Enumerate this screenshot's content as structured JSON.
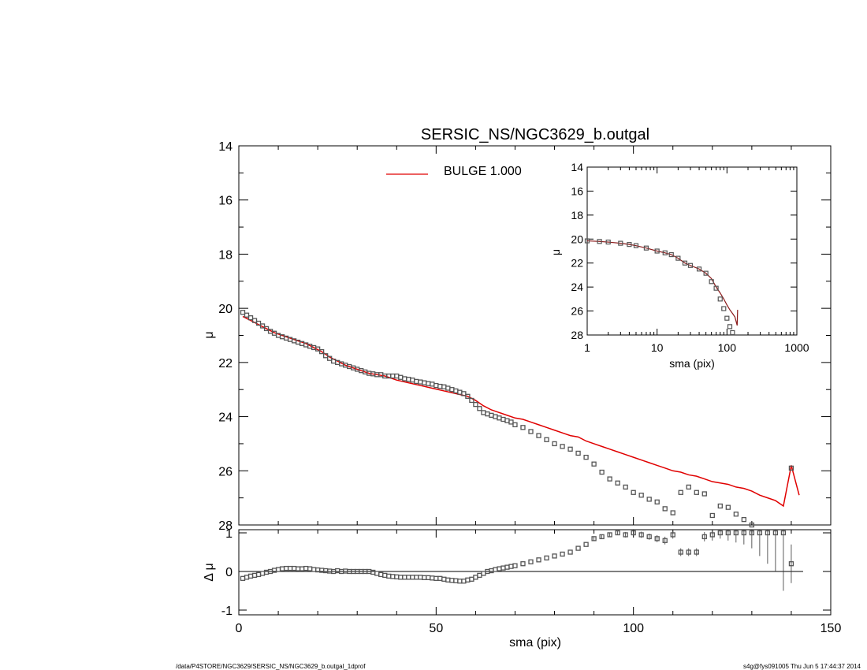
{
  "title": "SERSIC_NS/NGC3629_b.outgal",
  "footer_left": "/data/P4STORE/NGC3629/SERSIC_NS/NGC3629_b.outgal_1dprof",
  "footer_right": "s4g@fys091005  Thu Jun  5 17:44:37 2014",
  "colors": {
    "model": "#e00000",
    "data": "#555555",
    "axis": "#000000"
  },
  "chart_data": [
    {
      "type": "scatter",
      "panel": "main",
      "xlabel": "sma (pix)",
      "ylabel": "μ",
      "xlim": [
        0,
        150
      ],
      "ylim": [
        28,
        14
      ],
      "xticks": [
        0,
        50,
        100,
        150
      ],
      "yticks": [
        14,
        16,
        18,
        20,
        22,
        24,
        26,
        28
      ],
      "legend": {
        "label": "BULGE  1.000",
        "color": "#e00000",
        "position": "top-center"
      },
      "series": [
        {
          "name": "BULGE  1.000",
          "kind": "line",
          "x": [
            1,
            3,
            5,
            7,
            9,
            11,
            13,
            15,
            17,
            19,
            21,
            23,
            25,
            27,
            29,
            31,
            33,
            35,
            37,
            40,
            43,
            46,
            49,
            52,
            55,
            58,
            60,
            62,
            64,
            66,
            68,
            70,
            72,
            74,
            76,
            78,
            80,
            82,
            84,
            86,
            88,
            90,
            92,
            94,
            96,
            98,
            100,
            102,
            104,
            106,
            108,
            110,
            112,
            114,
            116,
            118,
            120,
            122,
            124,
            126,
            128,
            130,
            132,
            134,
            136,
            138,
            140,
            142
          ],
          "y": [
            20.3,
            20.45,
            20.6,
            20.75,
            20.9,
            21.0,
            21.1,
            21.2,
            21.3,
            21.45,
            21.6,
            21.8,
            21.95,
            22.1,
            22.2,
            22.3,
            22.4,
            22.45,
            22.5,
            22.65,
            22.75,
            22.85,
            22.95,
            23.05,
            23.15,
            23.25,
            23.4,
            23.6,
            23.75,
            23.85,
            23.95,
            24.05,
            24.1,
            24.2,
            24.3,
            24.4,
            24.5,
            24.6,
            24.7,
            24.75,
            24.9,
            25.0,
            25.1,
            25.2,
            25.3,
            25.4,
            25.5,
            25.6,
            25.7,
            25.8,
            25.9,
            26.0,
            26.05,
            26.15,
            26.2,
            26.3,
            26.4,
            26.45,
            26.5,
            26.6,
            26.65,
            26.75,
            26.9,
            27.0,
            27.1,
            27.3,
            25.8,
            26.9
          ]
        },
        {
          "name": "",
          "kind": "points",
          "x": [
            1,
            2,
            3,
            4,
            5,
            6,
            7,
            8,
            9,
            10,
            11,
            12,
            13,
            14,
            15,
            16,
            17,
            18,
            19,
            20,
            21,
            22,
            23,
            24,
            25,
            26,
            27,
            28,
            29,
            30,
            31,
            32,
            33,
            34,
            35,
            36,
            37,
            38,
            39,
            40,
            41,
            42,
            43,
            44,
            45,
            46,
            47,
            48,
            49,
            50,
            51,
            52,
            53,
            54,
            55,
            56,
            57,
            58,
            59,
            60,
            61,
            62,
            63,
            64,
            65,
            66,
            67,
            68,
            69,
            70,
            72,
            74,
            76,
            78,
            80,
            82,
            84,
            86,
            88,
            90,
            92,
            94,
            96,
            98,
            100,
            102,
            104,
            106,
            108,
            110,
            112,
            114,
            116,
            118,
            120,
            122,
            124,
            126,
            128,
            130,
            132,
            134,
            136,
            138,
            140
          ],
          "y": [
            20.15,
            20.25,
            20.35,
            20.45,
            20.55,
            20.65,
            20.75,
            20.85,
            20.92,
            21.0,
            21.05,
            21.1,
            21.15,
            21.2,
            21.25,
            21.3,
            21.35,
            21.4,
            21.45,
            21.5,
            21.6,
            21.75,
            21.85,
            21.95,
            22.0,
            22.05,
            22.1,
            22.15,
            22.2,
            22.25,
            22.3,
            22.35,
            22.4,
            22.42,
            22.45,
            22.45,
            22.5,
            22.5,
            22.5,
            22.5,
            22.55,
            22.6,
            22.62,
            22.65,
            22.7,
            22.72,
            22.75,
            22.78,
            22.8,
            22.85,
            22.88,
            22.9,
            22.95,
            23.0,
            23.05,
            23.1,
            23.15,
            23.25,
            23.4,
            23.55,
            23.7,
            23.85,
            23.9,
            23.95,
            24.0,
            24.05,
            24.1,
            24.15,
            24.2,
            24.3,
            24.4,
            24.55,
            24.7,
            24.85,
            25.0,
            25.1,
            25.2,
            25.35,
            25.5,
            25.75,
            26.05,
            26.3,
            26.45,
            26.6,
            26.8,
            26.9,
            27.05,
            27.15,
            27.4,
            27.55,
            26.8,
            26.6,
            26.8,
            26.85,
            27.65,
            27.3,
            27.35,
            27.6,
            27.8,
            28.0,
            28.1,
            28.2,
            28.3,
            28.4,
            25.9
          ]
        }
      ]
    },
    {
      "type": "scatter",
      "panel": "residual",
      "xlabel": "sma (pix)",
      "ylabel": "Δ μ",
      "xlim": [
        0,
        150
      ],
      "ylim": [
        -1,
        1
      ],
      "xticks": [
        0,
        50,
        100,
        150
      ],
      "yticks": [
        -1,
        0,
        1
      ],
      "zero_line": true,
      "series": [
        {
          "name": "",
          "kind": "points_with_errors",
          "x": [
            1,
            2,
            3,
            4,
            5,
            6,
            7,
            8,
            9,
            10,
            11,
            12,
            13,
            14,
            15,
            16,
            17,
            18,
            19,
            20,
            21,
            22,
            23,
            24,
            25,
            26,
            27,
            28,
            29,
            30,
            31,
            32,
            33,
            34,
            35,
            36,
            37,
            38,
            39,
            40,
            41,
            42,
            43,
            44,
            45,
            46,
            47,
            48,
            49,
            50,
            51,
            52,
            53,
            54,
            55,
            56,
            57,
            58,
            59,
            60,
            61,
            62,
            63,
            64,
            65,
            66,
            67,
            68,
            69,
            70,
            72,
            74,
            76,
            78,
            80,
            82,
            84,
            86,
            88,
            90,
            92,
            94,
            96,
            98,
            100,
            102,
            104,
            106,
            108,
            110,
            112,
            114,
            116,
            118,
            120,
            122,
            124,
            126,
            128,
            130,
            132,
            134,
            136,
            138,
            140
          ],
          "y": [
            -0.18,
            -0.15,
            -0.12,
            -0.1,
            -0.08,
            -0.05,
            -0.02,
            0.0,
            0.03,
            0.05,
            0.07,
            0.08,
            0.08,
            0.08,
            0.07,
            0.07,
            0.08,
            0.07,
            0.05,
            0.04,
            0.03,
            0.02,
            0.01,
            0.0,
            0.02,
            0.0,
            0.01,
            0.0,
            0.0,
            0.0,
            0.0,
            0.0,
            0.0,
            -0.02,
            -0.05,
            -0.08,
            -0.1,
            -0.12,
            -0.13,
            -0.14,
            -0.15,
            -0.15,
            -0.15,
            -0.15,
            -0.15,
            -0.15,
            -0.16,
            -0.16,
            -0.17,
            -0.18,
            -0.18,
            -0.2,
            -0.22,
            -0.23,
            -0.24,
            -0.25,
            -0.25,
            -0.22,
            -0.2,
            -0.15,
            -0.1,
            -0.05,
            0.0,
            0.02,
            0.05,
            0.07,
            0.09,
            0.11,
            0.13,
            0.15,
            0.2,
            0.25,
            0.3,
            0.35,
            0.4,
            0.45,
            0.5,
            0.6,
            0.7,
            0.85,
            0.9,
            0.95,
            1.0,
            0.95,
            1.0,
            0.95,
            0.9,
            0.85,
            0.8,
            0.95,
            0.5,
            0.5,
            0.5,
            0.9,
            0.95,
            1.0,
            1.0,
            1.0,
            1.0,
            1.0,
            1.0,
            1.0,
            1.0,
            1.0,
            0.2
          ],
          "err": [
            0.01,
            0.01,
            0.01,
            0.01,
            0.01,
            0.01,
            0.01,
            0.01,
            0.01,
            0.01,
            0.01,
            0.01,
            0.01,
            0.01,
            0.01,
            0.01,
            0.01,
            0.01,
            0.01,
            0.01,
            0.01,
            0.01,
            0.01,
            0.01,
            0.01,
            0.01,
            0.01,
            0.01,
            0.01,
            0.01,
            0.01,
            0.01,
            0.01,
            0.01,
            0.01,
            0.01,
            0.01,
            0.01,
            0.01,
            0.01,
            0.01,
            0.01,
            0.01,
            0.01,
            0.01,
            0.01,
            0.01,
            0.01,
            0.01,
            0.01,
            0.01,
            0.01,
            0.01,
            0.01,
            0.01,
            0.01,
            0.01,
            0.01,
            0.01,
            0.01,
            0.01,
            0.01,
            0.01,
            0.01,
            0.01,
            0.01,
            0.01,
            0.01,
            0.01,
            0.01,
            0.02,
            0.02,
            0.02,
            0.02,
            0.02,
            0.03,
            0.03,
            0.03,
            0.04,
            0.05,
            0.05,
            0.06,
            0.06,
            0.07,
            0.07,
            0.08,
            0.08,
            0.09,
            0.1,
            0.1,
            0.1,
            0.1,
            0.1,
            0.12,
            0.15,
            0.15,
            0.2,
            0.25,
            0.3,
            0.4,
            0.6,
            0.8,
            1.0,
            1.5,
            0.5
          ]
        }
      ]
    },
    {
      "type": "scatter",
      "panel": "inset",
      "xlabel": "sma (pix)",
      "ylabel": "μ",
      "xscale": "log",
      "xlim": [
        1,
        1000
      ],
      "ylim": [
        28,
        14
      ],
      "xticks": [
        1,
        10,
        100,
        1000
      ],
      "yticks": [
        14,
        16,
        18,
        20,
        22,
        24,
        26,
        28
      ],
      "series": [
        {
          "name": "",
          "kind": "line",
          "x": [
            1,
            1.5,
            2,
            3,
            4,
            5,
            7,
            10,
            13,
            16,
            20,
            25,
            30,
            40,
            50,
            60,
            70,
            80,
            90,
            100,
            110,
            120,
            130,
            140,
            142
          ],
          "y": [
            20.15,
            20.2,
            20.25,
            20.35,
            20.45,
            20.55,
            20.75,
            21.0,
            21.15,
            21.3,
            21.6,
            22.0,
            22.2,
            22.5,
            22.85,
            23.3,
            24.0,
            24.5,
            25.0,
            25.5,
            25.9,
            26.2,
            26.5,
            27.2,
            25.9
          ]
        },
        {
          "name": "",
          "kind": "points",
          "x": [
            1,
            1.5,
            2,
            3,
            4,
            5,
            7,
            10,
            13,
            16,
            20,
            25,
            30,
            40,
            50,
            60,
            70,
            80,
            90,
            100,
            110,
            120,
            130,
            140
          ],
          "y": [
            20.15,
            20.2,
            20.25,
            20.35,
            20.45,
            20.55,
            20.75,
            21.0,
            21.15,
            21.3,
            21.6,
            22.0,
            22.2,
            22.5,
            22.85,
            23.55,
            24.1,
            25.0,
            25.8,
            26.6,
            27.3,
            27.8,
            28.3,
            28.6
          ]
        }
      ]
    }
  ]
}
